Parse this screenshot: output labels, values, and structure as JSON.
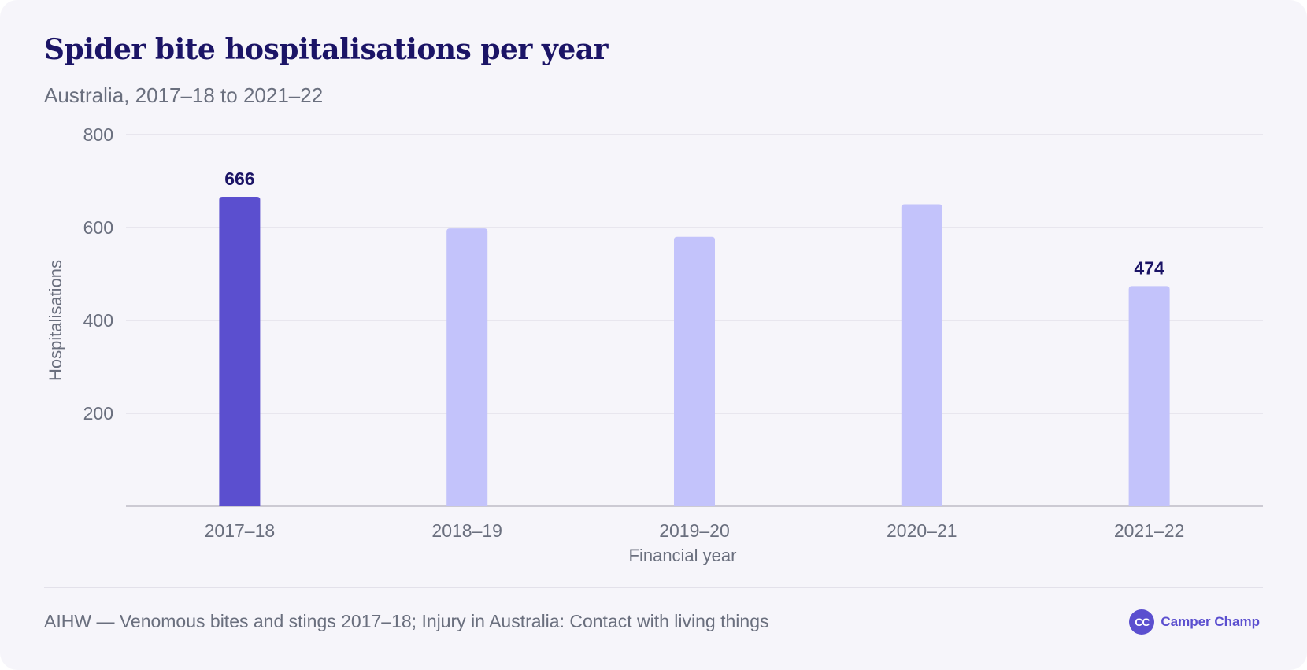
{
  "header": {
    "title": "Spider bite hospitalisations per year",
    "subtitle": "Australia, 2017–18 to 2021–22"
  },
  "footer": {
    "source": "AIHW — Venomous bites and stings 2017–18; Injury in Australia: Contact with living things",
    "brand_icon_text": "CC",
    "brand_name": "Camper Champ"
  },
  "colors": {
    "highlight_bar": "#5b4fcf",
    "regular_bar": "#c3c3fb",
    "title": "#1b1466",
    "label": "#1b1466",
    "tick_text": "#6a6f7e",
    "grid": "#e3e1ea"
  },
  "chart_data": {
    "type": "bar",
    "title": "Spider bite hospitalisations per year",
    "subtitle": "Australia, 2017–18 to 2021–22",
    "xlabel": "Financial year",
    "ylabel": "Hospitalisations",
    "categories": [
      "2017–18",
      "2018–19",
      "2019–20",
      "2020–21",
      "2021–22"
    ],
    "values": [
      666,
      598,
      580,
      650,
      474
    ],
    "highlighted": [
      true,
      false,
      false,
      false,
      false
    ],
    "data_labels": [
      "666",
      null,
      null,
      null,
      "474"
    ],
    "ylim": [
      0,
      800
    ],
    "yticks": [
      200,
      400,
      600,
      800
    ],
    "grid": true,
    "legend": "none"
  }
}
